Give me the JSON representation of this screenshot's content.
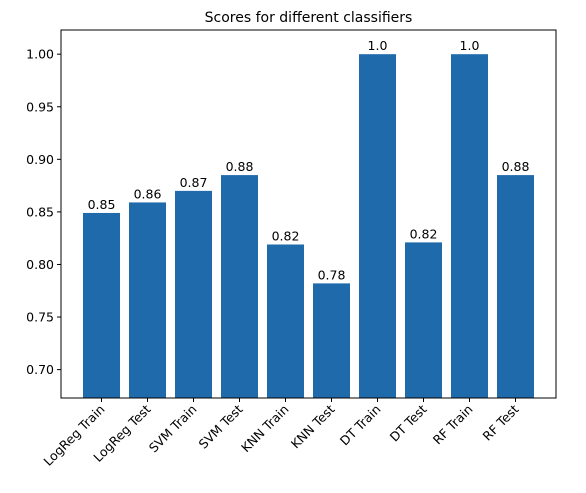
{
  "chart_data": {
    "type": "bar",
    "title": "Scores for different classifiers",
    "xlabel": "",
    "ylabel": "",
    "categories": [
      "LogReg Train",
      "LogReg Test",
      "SVM Train",
      "SVM Test",
      "KNN Train",
      "KNN Test",
      "DT Train",
      "DT Test",
      "RF Train",
      "RF Test"
    ],
    "values": [
      0.849,
      0.859,
      0.87,
      0.885,
      0.819,
      0.782,
      1.0,
      0.821,
      1.0,
      0.885
    ],
    "value_labels": [
      "0.85",
      "0.86",
      "0.87",
      "0.88",
      "0.82",
      "0.78",
      "1.0",
      "0.82",
      "1.0",
      "0.88"
    ],
    "ylim": [
      0.673,
      1.023
    ],
    "yticks": [
      0.7,
      0.75,
      0.8,
      0.85,
      0.9,
      0.95,
      1.0
    ],
    "ytick_labels": [
      "0.70",
      "0.75",
      "0.80",
      "0.85",
      "0.90",
      "0.95",
      "1.00"
    ],
    "bar_color": "#1f6aab",
    "grid": false,
    "legend": "none"
  }
}
